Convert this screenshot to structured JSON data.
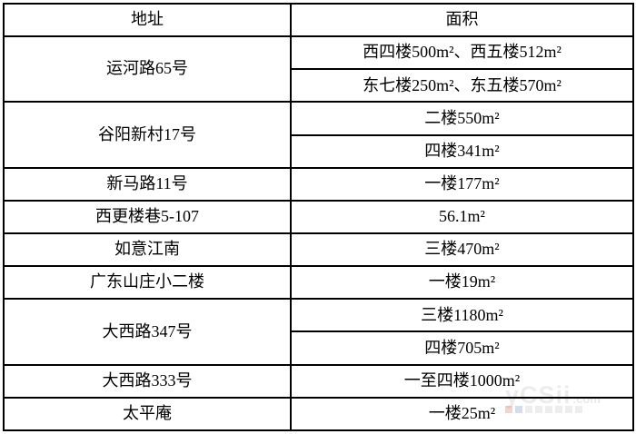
{
  "table": {
    "headers": {
      "address": "地址",
      "area": "面积"
    },
    "rows": [
      {
        "address": "运河路65号",
        "areas": [
          "西四楼500m²、西五楼512m²",
          "东七楼250m²、东五楼570m²"
        ]
      },
      {
        "address": "谷阳新村17号",
        "areas": [
          "二楼550m²",
          "四楼341m²"
        ]
      },
      {
        "address": "新马路11号",
        "areas": [
          "一楼177m²"
        ]
      },
      {
        "address": "西更楼巷5-107",
        "areas": [
          "56.1m²"
        ]
      },
      {
        "address": "如意江南",
        "areas": [
          "三楼470m²"
        ]
      },
      {
        "address": "广东山庄小二楼",
        "areas": [
          "一楼19m²"
        ]
      },
      {
        "address": "大西路347号",
        "areas": [
          "三楼1180m²",
          "四楼705m²"
        ]
      },
      {
        "address": "大西路333号",
        "areas": [
          "一至四楼1000m²"
        ]
      },
      {
        "address": "太平庵",
        "areas": [
          "一楼25m²"
        ]
      }
    ],
    "colors": {
      "border": "#000000",
      "text": "#000000",
      "background": "#ffffff"
    }
  },
  "watermark": {
    "text": "yCSii",
    "suffix": ".com"
  }
}
